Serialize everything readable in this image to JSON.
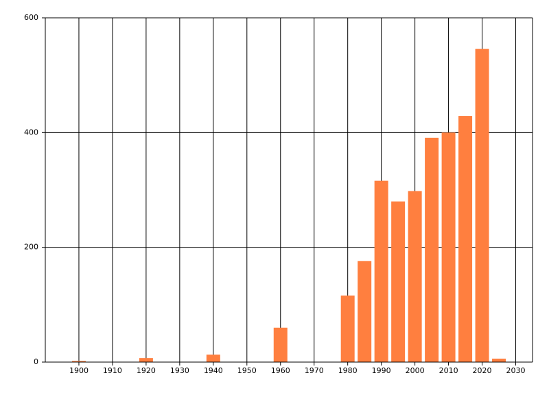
{
  "chart_data": {
    "type": "bar",
    "x": [
      1900,
      1920,
      1940,
      1960,
      1980,
      1985,
      1990,
      1995,
      2000,
      2005,
      2010,
      2015,
      2020,
      2025
    ],
    "values": [
      2,
      7,
      13,
      60,
      116,
      176,
      316,
      280,
      298,
      391,
      400,
      429,
      546,
      6
    ],
    "color": "#ff7f3f",
    "xlim": [
      1890,
      2035
    ],
    "xticks": [
      1900,
      1910,
      1920,
      1930,
      1940,
      1950,
      1960,
      1970,
      1980,
      1990,
      2000,
      2010,
      2020,
      2030
    ],
    "ylim": [
      0,
      600
    ],
    "yticks": [
      0,
      200,
      400,
      600
    ],
    "grid": true
  }
}
